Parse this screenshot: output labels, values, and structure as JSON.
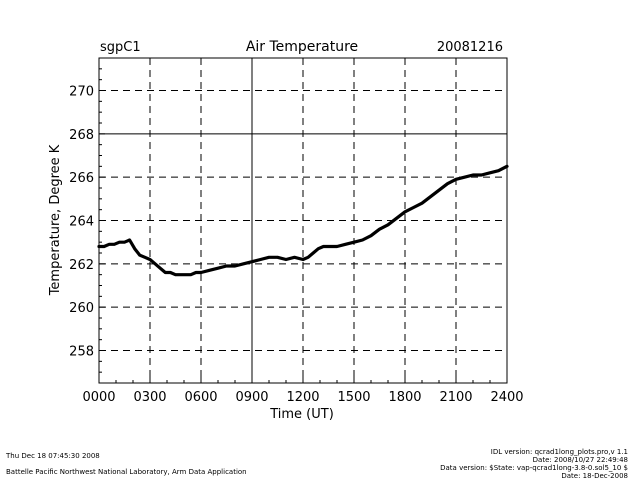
{
  "chart_data": {
    "type": "line",
    "site": "sgpC1",
    "title": "Air Temperature",
    "date": "20081216",
    "xlabel": "Time (UT)",
    "ylabel": "Temperature, Degree K",
    "xlim": [
      0,
      24
    ],
    "ylim": [
      256.5,
      271.5
    ],
    "x_ticks": [
      0,
      3,
      6,
      9,
      12,
      15,
      18,
      21,
      24
    ],
    "x_tick_labels": [
      "0000",
      "0300",
      "0600",
      "0900",
      "1200",
      "1500",
      "1800",
      "2100",
      "2400"
    ],
    "y_ticks": [
      258,
      260,
      262,
      264,
      266,
      268,
      270
    ],
    "y_tick_labels": [
      "258",
      "260",
      "262",
      "264",
      "266",
      "268",
      "270"
    ],
    "grid": "dashed",
    "reference_lines": {
      "y": [
        268
      ],
      "x": [
        9
      ]
    },
    "series": [
      {
        "name": "Air Temperature",
        "x": [
          0,
          0.3,
          0.6,
          0.9,
          1.2,
          1.5,
          1.8,
          2.1,
          2.4,
          2.7,
          3.0,
          3.3,
          3.6,
          3.9,
          4.2,
          4.5,
          4.8,
          5.1,
          5.4,
          5.7,
          6.0,
          6.5,
          7.0,
          7.5,
          8.0,
          8.5,
          9.0,
          9.5,
          10.0,
          10.5,
          11.0,
          11.5,
          12.0,
          12.3,
          12.6,
          12.9,
          13.2,
          13.5,
          14.0,
          14.5,
          15.0,
          15.5,
          16.0,
          16.5,
          17.0,
          17.5,
          18.0,
          18.5,
          19.0,
          19.5,
          20.0,
          20.5,
          21.0,
          21.5,
          22.0,
          22.5,
          23.0,
          23.5,
          24.0
        ],
        "y": [
          262.8,
          262.8,
          262.9,
          262.9,
          263.0,
          263.0,
          263.1,
          262.7,
          262.4,
          262.3,
          262.2,
          262.0,
          261.8,
          261.6,
          261.6,
          261.5,
          261.5,
          261.5,
          261.5,
          261.6,
          261.6,
          261.7,
          261.8,
          261.9,
          261.9,
          262.0,
          262.1,
          262.2,
          262.3,
          262.3,
          262.2,
          262.3,
          262.2,
          262.3,
          262.5,
          262.7,
          262.8,
          262.8,
          262.8,
          262.9,
          263.0,
          263.1,
          263.3,
          263.6,
          263.8,
          264.1,
          264.4,
          264.6,
          264.8,
          265.1,
          265.4,
          265.7,
          265.9,
          266.0,
          266.1,
          266.1,
          266.2,
          266.3,
          266.5
        ]
      }
    ]
  },
  "footer": {
    "timestamp": "Thu Dec 18 07:45:30 2008",
    "affiliation": "Battelle Pacific Northwest National Laboratory, Arm Data Application",
    "idl_version": "IDL version: qcrad1long_plots.pro,v 1.1",
    "idl_date": "Date: 2008/10/27 22:49:48",
    "data_version": "Data version: $State: vap-qcrad1long-3.8-0.sol5_10 $",
    "data_date": "Date: 18-Dec-2008"
  }
}
